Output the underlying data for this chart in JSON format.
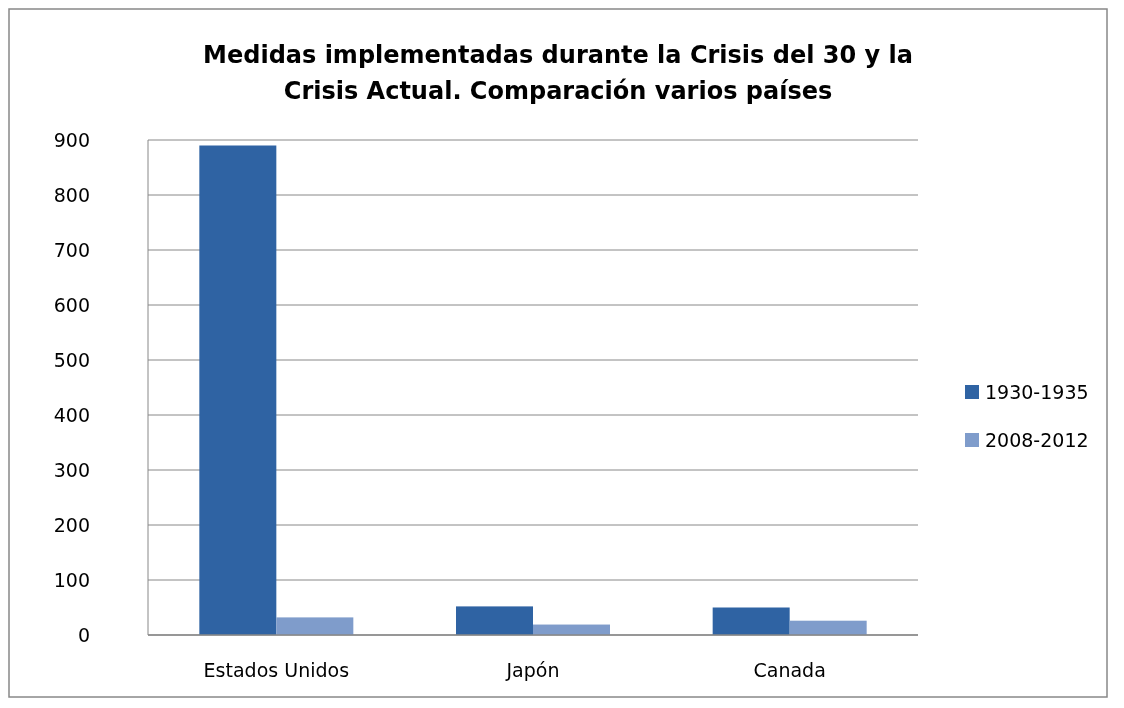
{
  "chart_data": {
    "type": "bar",
    "title": "Medidas implementadas durante la Crisis del 30 y la Crisis Actual. Comparación  varios países",
    "categories": [
      "Estados Unidos",
      "Japón",
      "Canada"
    ],
    "series": [
      {
        "name": "1930-1935",
        "color": "#2f63a3",
        "values": [
          890,
          52,
          50
        ]
      },
      {
        "name": "2008-2012",
        "color": "#7f9ccb",
        "values": [
          32,
          19,
          26
        ]
      }
    ],
    "ylim": [
      0,
      900
    ],
    "yticks": [
      0,
      100,
      200,
      300,
      400,
      500,
      600,
      700,
      800,
      900
    ],
    "grid": "y",
    "legend": "right"
  }
}
